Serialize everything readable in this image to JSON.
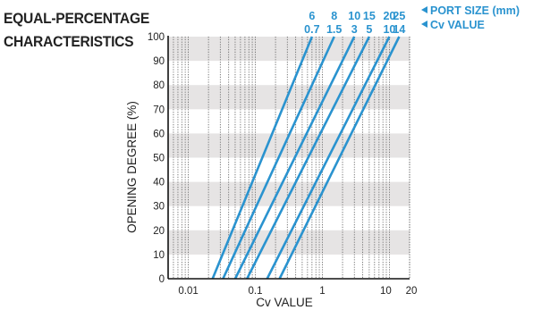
{
  "title_line1": "EQUAL-PERCENTAGE",
  "title_line2": "CHARACTERISTICS",
  "chart_data": {
    "type": "line",
    "xlabel": "Cv VALUE",
    "ylabel": "OPENING DEGREE (%)",
    "xscale": "log",
    "xlim": [
      0.005,
      20
    ],
    "ylim": [
      0,
      100
    ],
    "x_ticks": [
      "0.01",
      "0.1",
      "1",
      "10",
      "20"
    ],
    "y_ticks": [
      "0",
      "10",
      "20",
      "30",
      "40",
      "50",
      "60",
      "70",
      "80",
      "90",
      "100"
    ],
    "grid": "vertical dotted lines, alternating gray horizontal bands",
    "legend_header_port": "PORT SIZE (mm)",
    "legend_header_cv": "Cv VALUE",
    "series": [
      {
        "port_size": "6",
        "cv_value": "0.7",
        "x": [
          0.023,
          0.7
        ],
        "y": [
          0,
          100
        ]
      },
      {
        "port_size": "8",
        "cv_value": "1.5",
        "x": [
          0.033,
          1.5
        ],
        "y": [
          0,
          100
        ]
      },
      {
        "port_size": "10",
        "cv_value": "3",
        "x": [
          0.05,
          3
        ],
        "y": [
          0,
          100
        ]
      },
      {
        "port_size": "15",
        "cv_value": "5",
        "x": [
          0.075,
          5
        ],
        "y": [
          0,
          100
        ]
      },
      {
        "port_size": "20",
        "cv_value": "10",
        "x": [
          0.15,
          10
        ],
        "y": [
          0,
          100
        ]
      },
      {
        "port_size": "25",
        "cv_value": "14",
        "x": [
          0.23,
          14
        ],
        "y": [
          0,
          100
        ]
      }
    ],
    "line_color": "#2a93cf",
    "band_color": "#e6e4e4"
  }
}
